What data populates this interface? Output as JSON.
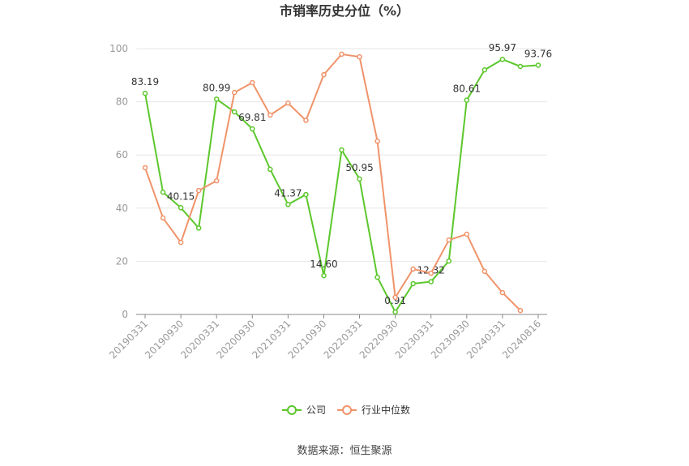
{
  "chart_data": {
    "type": "line",
    "title": "市销率历史分位（%）",
    "source": "数据来源：恒生聚源",
    "categories": [
      "20190331",
      null,
      "20190930",
      null,
      "20200331",
      null,
      "20200930",
      null,
      "20210331",
      null,
      "20210930",
      null,
      "20220331",
      null,
      "20220930",
      null,
      "20230331",
      null,
      "20230930",
      null,
      "20240331",
      null,
      "20240816"
    ],
    "series": [
      {
        "name": "公司",
        "color": "#5cc72c",
        "values": [
          83.19,
          46,
          40.15,
          32.5,
          80.99,
          76.2,
          69.81,
          54.6,
          41.37,
          45.1,
          14.6,
          61.9,
          50.95,
          14,
          0.91,
          11.6,
          12.32,
          20.1,
          80.61,
          92,
          95.97,
          93.3,
          93.76
        ],
        "value_labels": [
          "83.19",
          null,
          "40.15",
          null,
          "80.99",
          null,
          "69.81",
          null,
          "41.37",
          null,
          "14.60",
          null,
          "50.95",
          null,
          "0.91",
          null,
          "12.32",
          null,
          "80.61",
          null,
          "95.97",
          null,
          "93.76"
        ]
      },
      {
        "name": "行业中位数",
        "color": "#f0936a",
        "values": [
          55.2,
          36.3,
          27.1,
          46.6,
          50.3,
          83.5,
          87.2,
          75,
          79.5,
          73,
          90.2,
          97.9,
          96.9,
          65.2,
          6.4,
          17.1,
          15.5,
          28,
          30.2,
          16.2,
          8.2,
          1.5,
          null
        ]
      }
    ],
    "ylim": [
      0,
      100
    ],
    "yticks": [
      0,
      20,
      40,
      60,
      80,
      100
    ],
    "grid": true
  }
}
